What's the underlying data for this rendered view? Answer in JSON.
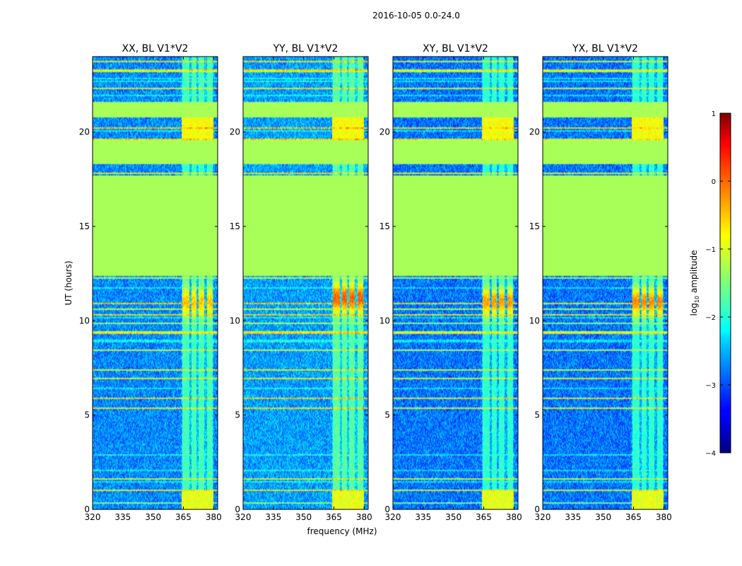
{
  "figure": {
    "suptitle": "2016-10-05 0.0-24.0",
    "ylabel": "UT (hours)",
    "xlabel": "frequency (MHz)"
  },
  "colorbar": {
    "label_prefix": "log",
    "label_sub": "10",
    "label_suffix": " amplitude",
    "ticks": [
      "1",
      "0",
      "−1",
      "−2",
      "−3",
      "−4"
    ],
    "tick_values": [
      1,
      0,
      -1,
      -2,
      -3,
      -4
    ],
    "range": [
      -4,
      1
    ],
    "colormap": "jet"
  },
  "chart_data": {
    "type": "heatmap",
    "xlabel": "frequency (MHz)",
    "ylabel": "UT (hours)",
    "xlim": [
      320,
      382
    ],
    "ylim": [
      0,
      24
    ],
    "xticks": [
      320,
      335,
      350,
      365,
      380
    ],
    "yticks": [
      0,
      5,
      10,
      15,
      20
    ],
    "xtick_labels": [
      "320",
      "335",
      "350",
      "365",
      "380"
    ],
    "ytick_labels": [
      "0",
      "5",
      "10",
      "15",
      "20"
    ],
    "value_scale": "log10 amplitude",
    "value_range": [
      -4,
      1
    ],
    "flagged_value": -1.3,
    "flagged_time_ranges_hours": [
      [
        12.4,
        17.7
      ],
      [
        18.3,
        19.6
      ],
      [
        20.8,
        21.6
      ]
    ],
    "rfi_frequency_band_mhz": [
      364,
      380
    ],
    "rfi_subband_edges_mhz": [
      364,
      368.5,
      372,
      376,
      380
    ],
    "panels": [
      {
        "title": "XX, BL V1*V2",
        "background": -2.7,
        "rfi_level": -0.6,
        "rfi_peak_hour": 11.0
      },
      {
        "title": "YY, BL V1*V2",
        "background": -2.6,
        "rfi_level": -0.1,
        "rfi_peak_hour": 11.2
      },
      {
        "title": "XY, BL V1*V2",
        "background": -2.8,
        "rfi_level": -0.4,
        "rfi_peak_hour": 11.0
      },
      {
        "title": "YX, BL V1*V2",
        "background": -2.8,
        "rfi_level": -0.3,
        "rfi_peak_hour": 11.0
      }
    ]
  }
}
